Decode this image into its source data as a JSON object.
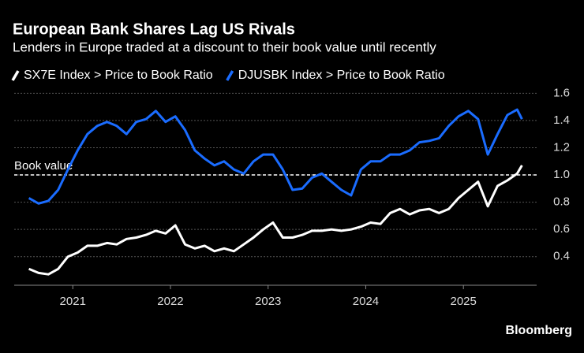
{
  "chart_data": {
    "type": "line",
    "title": "European Bank Shares Lag US Rivals",
    "subtitle": "Lenders in Europe traded at a discount to their book value until recently",
    "source": "Bloomberg",
    "reference_line": {
      "value": 1,
      "label": "Book value"
    },
    "x": [
      2020.55,
      2020.65,
      2020.75,
      2020.85,
      2020.95,
      2021.05,
      2021.15,
      2021.25,
      2021.35,
      2021.45,
      2021.55,
      2021.65,
      2021.75,
      2021.85,
      2021.95,
      2022.05,
      2022.15,
      2022.25,
      2022.35,
      2022.45,
      2022.55,
      2022.65,
      2022.75,
      2022.85,
      2022.95,
      2023.05,
      2023.15,
      2023.25,
      2023.35,
      2023.45,
      2023.55,
      2023.65,
      2023.75,
      2023.85,
      2023.95,
      2024.05,
      2024.15,
      2024.25,
      2024.35,
      2024.45,
      2024.55,
      2024.65,
      2024.75,
      2024.85,
      2024.95,
      2025.05,
      2025.15,
      2025.25,
      2025.35,
      2025.45,
      2025.55,
      2025.6
    ],
    "series": [
      {
        "name": "SX7E Index > Price to Book Ratio",
        "color": "#ffffff",
        "values": [
          0.31,
          0.28,
          0.27,
          0.31,
          0.4,
          0.43,
          0.48,
          0.48,
          0.5,
          0.49,
          0.53,
          0.54,
          0.56,
          0.59,
          0.57,
          0.63,
          0.49,
          0.46,
          0.48,
          0.44,
          0.46,
          0.44,
          0.49,
          0.54,
          0.6,
          0.65,
          0.54,
          0.54,
          0.56,
          0.59,
          0.59,
          0.6,
          0.59,
          0.6,
          0.62,
          0.65,
          0.64,
          0.72,
          0.75,
          0.71,
          0.74,
          0.75,
          0.72,
          0.75,
          0.83,
          0.89,
          0.95,
          0.77,
          0.92,
          0.96,
          1.01,
          1.07
        ]
      },
      {
        "name": "DJUSBK Index > Price to Book Ratio",
        "color": "#1a6cff",
        "values": [
          0.83,
          0.79,
          0.81,
          0.89,
          1.04,
          1.18,
          1.3,
          1.36,
          1.39,
          1.36,
          1.3,
          1.39,
          1.41,
          1.47,
          1.39,
          1.43,
          1.33,
          1.18,
          1.12,
          1.07,
          1.1,
          1.04,
          1.01,
          1.1,
          1.15,
          1.15,
          1.04,
          0.89,
          0.9,
          0.98,
          1.01,
          0.95,
          0.89,
          0.85,
          1.04,
          1.1,
          1.1,
          1.15,
          1.15,
          1.18,
          1.24,
          1.25,
          1.27,
          1.36,
          1.43,
          1.47,
          1.41,
          1.15,
          1.3,
          1.44,
          1.48,
          1.41
        ]
      }
    ],
    "xlim": [
      2020.4,
      2025.75
    ],
    "xticks": [
      2021,
      2022,
      2023,
      2024,
      2025
    ],
    "ylim": [
      0.19,
      1.66
    ],
    "yticks": [
      0.4,
      0.6,
      0.8,
      {
        "value": 1,
        "label": "1.0"
      },
      1.2,
      1.4,
      1.6
    ],
    "grid": true
  }
}
